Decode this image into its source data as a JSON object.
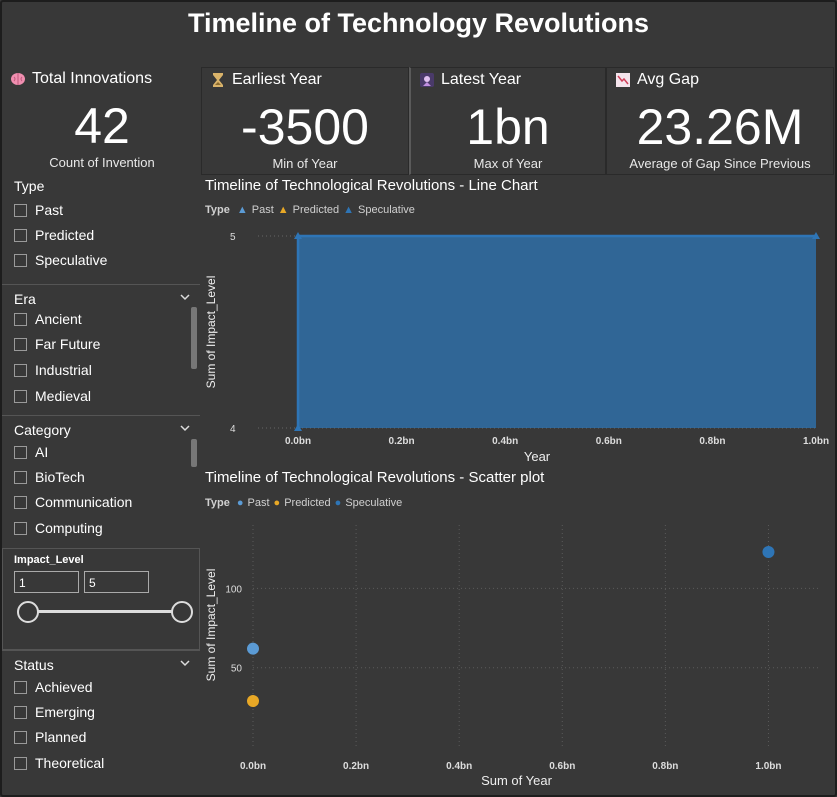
{
  "title": "Timeline of Technology Revolutions",
  "cards": [
    {
      "label": "Total Innovations",
      "icon": "brain-icon",
      "value": "42",
      "sub": "Count of Invention"
    },
    {
      "label": "Earliest Year",
      "icon": "hourglass-icon",
      "value": "-3500",
      "sub": "Min of Year"
    },
    {
      "label": "Latest Year",
      "icon": "future-icon",
      "value": "1bn",
      "sub": "Max of Year"
    },
    {
      "label": "Avg Gap",
      "icon": "trend-down-icon",
      "value": "23.26M",
      "sub": "Average of Gap Since Previous"
    }
  ],
  "filters": {
    "type": {
      "label": "Type",
      "items": [
        "Past",
        "Predicted",
        "Speculative"
      ]
    },
    "era": {
      "label": "Era",
      "items": [
        "Ancient",
        "Far Future",
        "Industrial",
        "Medieval"
      ]
    },
    "category": {
      "label": "Category",
      "items": [
        "AI",
        "BioTech",
        "Communication",
        "Computing"
      ]
    },
    "impact": {
      "label": "Impact_Level",
      "min": "1",
      "max": "5"
    },
    "status": {
      "label": "Status",
      "items": [
        "Achieved",
        "Emerging",
        "Planned",
        "Theoretical"
      ]
    }
  },
  "legend": {
    "title": "Type",
    "items": [
      "Past",
      "Predicted",
      "Speculative"
    ]
  },
  "colors": {
    "past": "#5b9bd5",
    "predicted": "#e8a826",
    "speculative": "#2e75b6"
  },
  "chart_data": [
    {
      "type": "area",
      "title": "Timeline of Technological Revolutions - Line Chart",
      "xlabel": "Year",
      "ylabel": "Sum of Impact_Level",
      "x_ticks": [
        "0.0bn",
        "0.2bn",
        "0.4bn",
        "0.6bn",
        "0.8bn",
        "1.0bn"
      ],
      "y_ticks": [
        "4",
        "5"
      ],
      "xlim": [
        0,
        1.0
      ],
      "ylim": [
        4,
        5
      ],
      "series": [
        {
          "name": "Speculative",
          "x": [
            0.0,
            0.0,
            1.0
          ],
          "y": [
            4,
            5,
            5
          ]
        }
      ]
    },
    {
      "type": "scatter",
      "title": "Timeline of Technological Revolutions - Scatter plot",
      "xlabel": "Sum of Year",
      "ylabel": "Sum of Impact_Level",
      "x_ticks": [
        "0.0bn",
        "0.2bn",
        "0.4bn",
        "0.6bn",
        "0.8bn",
        "1.0bn"
      ],
      "y_ticks": [
        "50",
        "100"
      ],
      "xlim": [
        0,
        1.1
      ],
      "ylim": [
        0,
        140
      ],
      "series": [
        {
          "name": "Past",
          "x": [
            0.0
          ],
          "y": [
            62
          ]
        },
        {
          "name": "Predicted",
          "x": [
            0.0
          ],
          "y": [
            29
          ]
        },
        {
          "name": "Speculative",
          "x": [
            1.0
          ],
          "y": [
            123
          ]
        }
      ]
    }
  ]
}
